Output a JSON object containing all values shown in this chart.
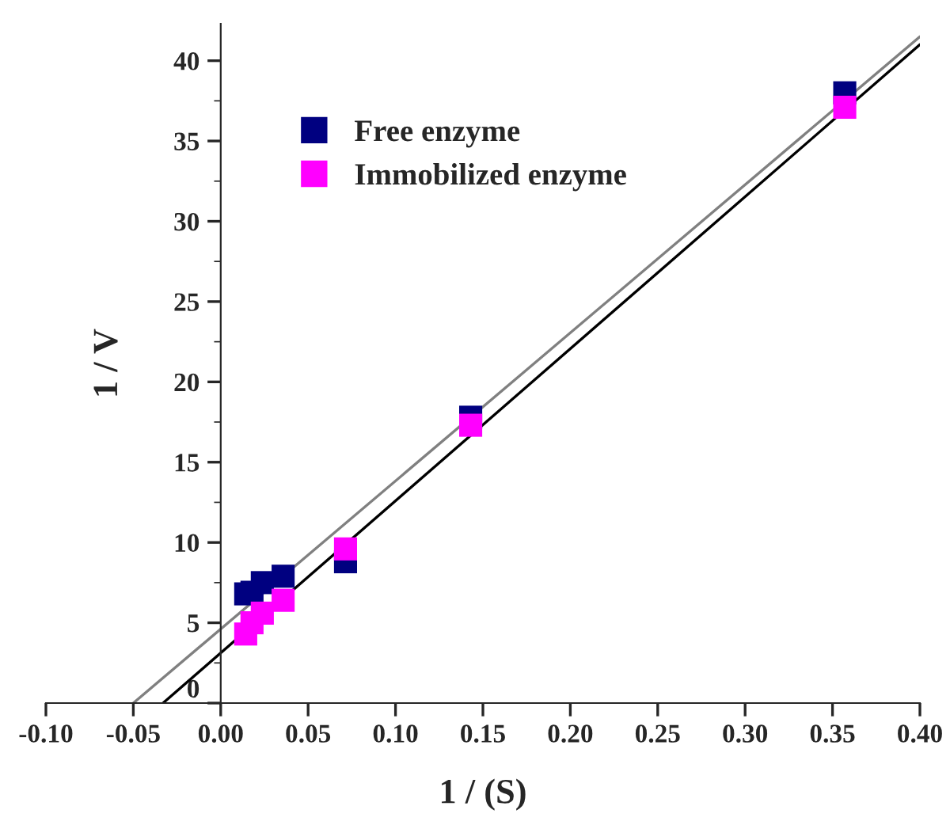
{
  "chart_data": {
    "type": "scatter",
    "xlabel": "1 / (S)",
    "ylabel": "1 / V",
    "xlim": [
      -0.1,
      0.4
    ],
    "xticks": [
      {
        "value": -0.1,
        "label": "-0.10"
      },
      {
        "value": -0.05,
        "label": "-0.05"
      },
      {
        "value": 0,
        "label": "0.00"
      },
      {
        "value": 0.05,
        "label": "0.05"
      },
      {
        "value": 0.1,
        "label": "0.10"
      },
      {
        "value": 0.15,
        "label": "0.15"
      },
      {
        "value": 0.2,
        "label": "0.20"
      },
      {
        "value": 0.25,
        "label": "0.25"
      },
      {
        "value": 0.3,
        "label": "0.30"
      },
      {
        "value": 0.35,
        "label": "0.35"
      },
      {
        "value": 0.4,
        "label": "0.40"
      }
    ],
    "ylim": [
      0,
      42.3
    ],
    "yticks": [
      0,
      5,
      10,
      15,
      20,
      25,
      30,
      35,
      40
    ],
    "legend": "top left",
    "grid": false,
    "series": [
      {
        "name": "Free enzyme",
        "marker": "square",
        "color": "#000080",
        "x": [
          0.0143,
          0.0179,
          0.0238,
          0.0357,
          0.0714,
          0.143,
          0.357
        ],
        "values": [
          6.8,
          6.9,
          7.5,
          7.9,
          8.8,
          17.8,
          38.0
        ]
      },
      {
        "name": "Immobilized enzyme",
        "marker": "square",
        "color": "#ff00ff",
        "x": [
          0.0143,
          0.0179,
          0.0238,
          0.0357,
          0.0714,
          0.143,
          0.357
        ],
        "values": [
          4.3,
          5.0,
          5.6,
          6.4,
          9.6,
          17.3,
          37.1
        ]
      },
      {
        "type": "line",
        "marker": "none",
        "color": "#808080",
        "x": [
          -0.05,
          0.4
        ],
        "values": [
          0,
          41.5
        ]
      },
      {
        "type": "line",
        "marker": "none",
        "color": "#000000",
        "x": [
          -0.033,
          0.4
        ],
        "values": [
          0,
          41.0
        ]
      }
    ]
  }
}
